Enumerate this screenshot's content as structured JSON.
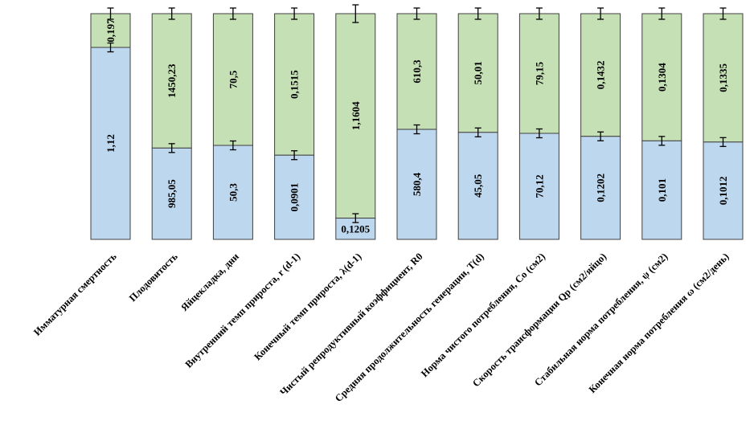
{
  "chart_data": {
    "type": "bar",
    "stacked": "percent",
    "categories": [
      "Имматурная смертность",
      "Плодовитость",
      "Яйцекладка, дни",
      "Внутренний темп прироста, r (d-1)",
      "Конечный темп прироста, λ(d-1)",
      "Чистый репродуктивный коэффициент, R0",
      "Средняя продолжительность генерации, T(d)",
      "Норма чистого потребления, Co (см2)",
      "Скорость трансформации Qp (см2/яйцо)",
      "Стабильная норма потребления, ψ (см2)",
      "Конечная норма потребления ω (см2/день)"
    ],
    "series": [
      {
        "color": "#bdd7ee",
        "values": [
          1.12,
          985.05,
          50.3,
          0.0901,
          0.1205,
          580.4,
          45.05,
          70.12,
          0.1202,
          0.101,
          0.1012
        ],
        "labels": [
          "1,12",
          "985,05",
          "50,3",
          "0,0901",
          "0,1205",
          "580,4",
          "45,05",
          "70,12",
          "0,1202",
          "0,101",
          "0,1012"
        ]
      },
      {
        "color": "#c5e0b4",
        "values": [
          0.197,
          1450.23,
          70.5,
          0.1515,
          1.1604,
          610.3,
          50.01,
          79.15,
          0.1432,
          0.1304,
          0.1335
        ],
        "labels": [
          "0,197",
          "1450,23",
          "70,5",
          "0,1515",
          "1,1604",
          "610,3",
          "50,01",
          "79,15",
          "0,1432",
          "0,1304",
          "0,1335"
        ]
      }
    ],
    "error_bars": true,
    "legend": "none",
    "grid": false,
    "xlabel": "",
    "ylabel": ""
  }
}
